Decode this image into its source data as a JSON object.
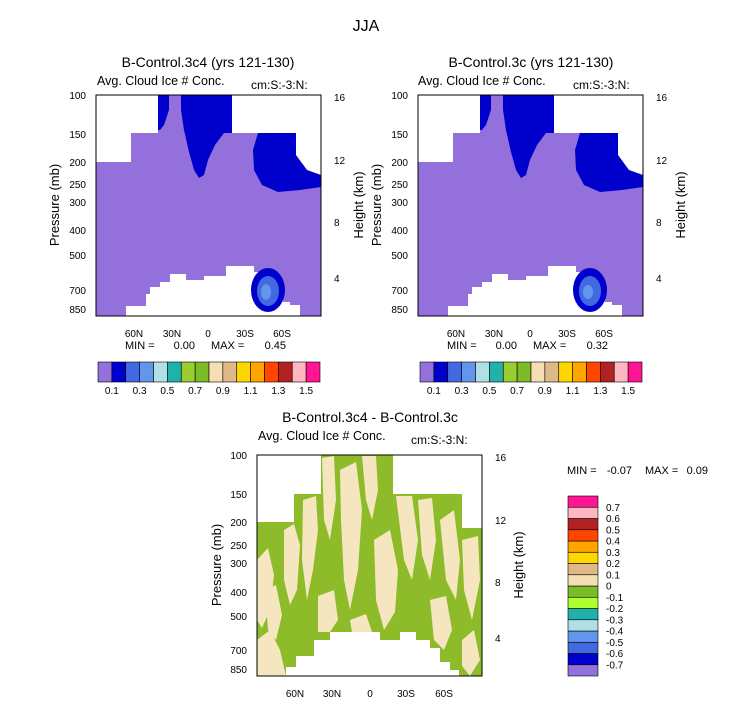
{
  "figure": {
    "season": "JJA"
  },
  "chart_data": [
    {
      "type": "heatmap",
      "title": "B-Control.3c4 (yrs 121-130)",
      "subtitle": "Avg. Cloud Ice # Conc.",
      "units": "cm:S:-3:N:",
      "ylabel": "Pressure (mb)",
      "ylabel_right": "Height (km)",
      "x_ticks": [
        "60N",
        "30N",
        "0",
        "30S",
        "60S"
      ],
      "y_ticks": [
        "100",
        "150",
        "200",
        "250",
        "300",
        "400",
        "500",
        "700",
        "850"
      ],
      "y_right_ticks": [
        "16",
        "12",
        "8",
        "4"
      ],
      "min_label": "MIN =",
      "min": "0.00",
      "max_label": "MAX =",
      "max": "0.45"
    },
    {
      "type": "heatmap",
      "title": "B-Control.3c (yrs 121-130)",
      "subtitle": "Avg. Cloud Ice # Conc.",
      "units": "cm:S:-3:N:",
      "ylabel": "Pressure (mb)",
      "ylabel_right": "Height (km)",
      "x_ticks": [
        "60N",
        "30N",
        "0",
        "30S",
        "60S"
      ],
      "y_ticks": [
        "100",
        "150",
        "200",
        "250",
        "300",
        "400",
        "500",
        "700",
        "850"
      ],
      "y_right_ticks": [
        "16",
        "12",
        "8",
        "4"
      ],
      "min_label": "MIN =",
      "min": "0.00",
      "max_label": "MAX =",
      "max": "0.32"
    },
    {
      "type": "heatmap",
      "title": "B-Control.3c4 - B-Control.3c",
      "subtitle": "Avg. Cloud Ice # Conc.",
      "units": "cm:S:-3:N:",
      "ylabel": "Pressure (mb)",
      "ylabel_right": "Height (km)",
      "x_ticks": [
        "60N",
        "30N",
        "0",
        "30S",
        "60S"
      ],
      "y_ticks": [
        "100",
        "150",
        "200",
        "250",
        "300",
        "400",
        "500",
        "700",
        "850"
      ],
      "y_right_ticks": [
        "16",
        "12",
        "8",
        "4"
      ],
      "min_label": "MIN =",
      "min": "-0.07",
      "max_label": "MAX =",
      "max": "0.09"
    }
  ],
  "colorbar_main": {
    "colors": [
      "#9370db",
      "#0000cd",
      "#4169e1",
      "#6495ed",
      "#b0e0e6",
      "#20b2aa",
      "#9acd32",
      "#7cbb28",
      "#f5deb3",
      "#deb887",
      "#ffd700",
      "#ffa500",
      "#ff4500",
      "#b22222",
      "#ffb6c1",
      "#ff1493"
    ],
    "labels": [
      "0.1",
      "0.3",
      "0.5",
      "0.7",
      "0.9",
      "1.1",
      "1.3",
      "1.5"
    ]
  },
  "colorbar_diff": {
    "colors": [
      "#9370db",
      "#0000cd",
      "#4169e1",
      "#6495ed",
      "#b0e0e6",
      "#20b2aa",
      "#adff2f",
      "#7cbb28",
      "#f5deb3",
      "#deb887",
      "#ffd700",
      "#ffa500",
      "#ff4500",
      "#b22222",
      "#ffb6c1",
      "#ff1493"
    ],
    "labels": [
      "-0.7",
      "-0.6",
      "-0.5",
      "-0.4",
      "-0.3",
      "-0.2",
      "-0.1",
      "0",
      "0.1",
      "0.2",
      "0.3",
      "0.4",
      "0.5",
      "0.6",
      "0.7"
    ]
  },
  "palette": {
    "ice": "#9370db",
    "deep": "#0000cd",
    "mid": "#4169e1",
    "light": "#6495ed",
    "green": "#8dbb2a",
    "tan": "#f5e6c0"
  }
}
